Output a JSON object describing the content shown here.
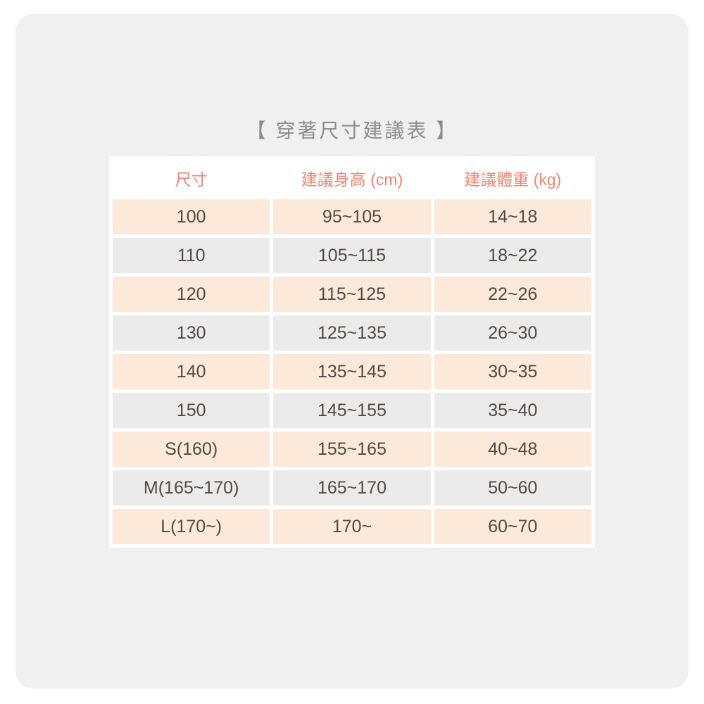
{
  "title": "【 穿著尺寸建議表 】",
  "table": {
    "headers": [
      "尺寸",
      "建議身高 (cm)",
      "建議體重 (kg)"
    ],
    "rows": [
      [
        "100",
        "95~105",
        "14~18"
      ],
      [
        "110",
        "105~115",
        "18~22"
      ],
      [
        "120",
        "115~125",
        "22~26"
      ],
      [
        "130",
        "125~135",
        "26~30"
      ],
      [
        "140",
        "135~145",
        "30~35"
      ],
      [
        "150",
        "145~155",
        "35~40"
      ],
      [
        "S(160)",
        "155~165",
        "40~48"
      ],
      [
        "M(165~170)",
        "165~170",
        "50~60"
      ],
      [
        "L(170~)",
        "170~",
        "60~70"
      ]
    ]
  },
  "chart_data": {
    "type": "table",
    "title": "【 穿著尺寸建議表 】",
    "columns": [
      "尺寸",
      "建議身高 (cm)",
      "建議體重 (kg)"
    ],
    "rows": [
      [
        "100",
        "95~105",
        "14~18"
      ],
      [
        "110",
        "105~115",
        "18~22"
      ],
      [
        "120",
        "115~125",
        "22~26"
      ],
      [
        "130",
        "125~135",
        "26~30"
      ],
      [
        "140",
        "135~145",
        "30~35"
      ],
      [
        "150",
        "145~155",
        "35~40"
      ],
      [
        "S(160)",
        "155~165",
        "40~48"
      ],
      [
        "M(165~170)",
        "165~170",
        "50~60"
      ],
      [
        "L(170~)",
        "170~",
        "60~70"
      ]
    ],
    "layout_hints": {
      "row_striping": [
        "peach",
        "gray"
      ],
      "header_text_color": "#ec8672",
      "grid": "white gutters between cells"
    }
  },
  "colors": {
    "card_bg": "#f0f0f1",
    "header_text": "#ec8672",
    "row_peach": "#fce9d9",
    "row_gray": "#ebebeb",
    "body_text": "#514b45",
    "title_text": "#8d8d8d",
    "table_bg": "#ffffff"
  }
}
